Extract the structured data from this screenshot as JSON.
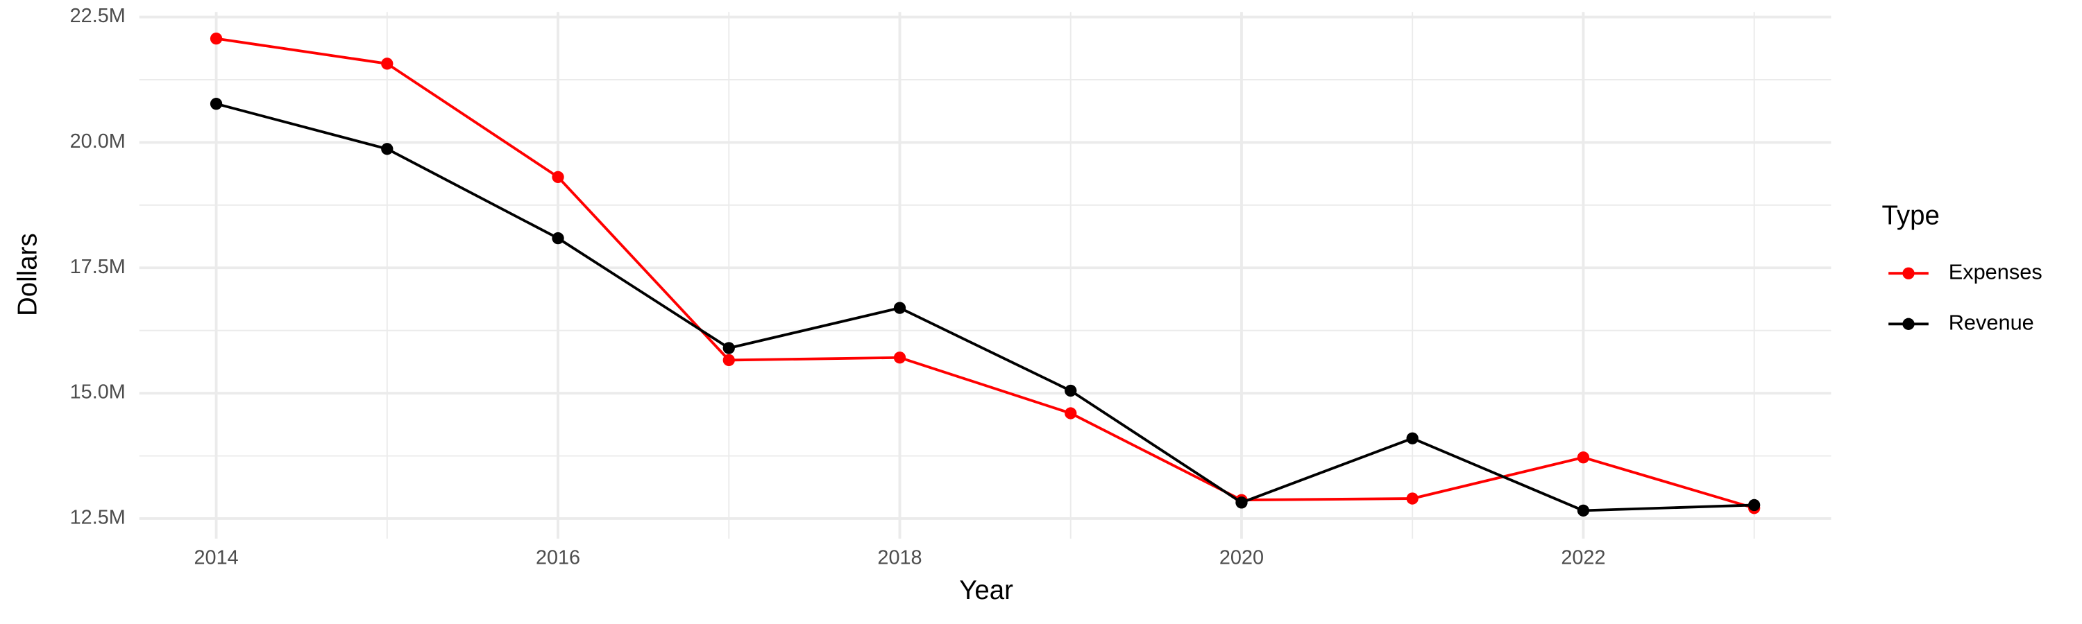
{
  "chart_data": {
    "type": "line",
    "x_label": "Year",
    "y_label": "Dollars",
    "legend_title": "Type",
    "legend": "right",
    "grid": true,
    "x": [
      2014,
      2015,
      2016,
      2017,
      2018,
      2019,
      2020,
      2021,
      2022,
      2023
    ],
    "series": [
      {
        "name": "Expenses",
        "color": "#ff0000",
        "values": [
          22070000,
          21570000,
          19310000,
          15660000,
          15710000,
          14600000,
          12870000,
          12900000,
          13720000,
          12710000
        ]
      },
      {
        "name": "Revenue",
        "color": "#000000",
        "values": [
          20770000,
          19870000,
          18090000,
          15900000,
          16700000,
          15050000,
          12820000,
          14100000,
          12660000,
          12770000
        ]
      }
    ],
    "xlim": [
      2013.55,
      2023.45
    ],
    "xticks": [
      2014,
      2016,
      2018,
      2020,
      2022
    ],
    "ylim": [
      12100000,
      22600000
    ],
    "yticks": [
      {
        "value": 12500000,
        "label": "12.5M"
      },
      {
        "value": 15000000,
        "label": "15.0M"
      },
      {
        "value": 17500000,
        "label": "17.5M"
      },
      {
        "value": 20000000,
        "label": "20.0M"
      },
      {
        "value": 22500000,
        "label": "22.5M"
      }
    ]
  }
}
